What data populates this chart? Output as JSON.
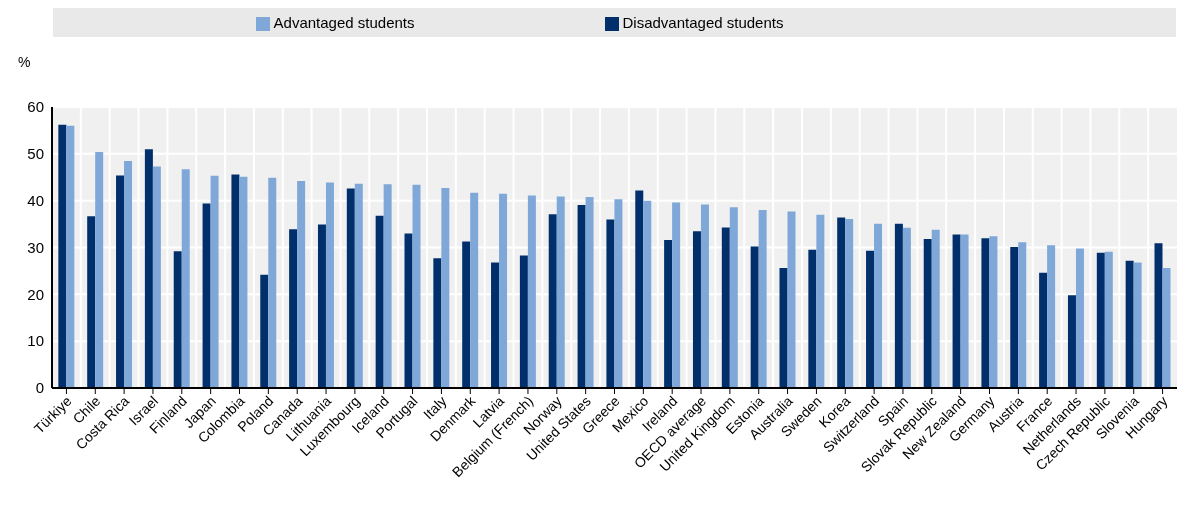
{
  "chart_data": {
    "type": "bar",
    "ylabel": "%",
    "categories": [
      "Türkiye",
      "Chile",
      "Costa Rica",
      "Israel",
      "Finland",
      "Japan",
      "Colombia",
      "Poland",
      "Canada",
      "Lithuania",
      "Luxembourg",
      "Iceland",
      "Portugal",
      "Italy",
      "Denmark",
      "Latvia",
      "Belgium (French)",
      "Norway",
      "United States",
      "Greece",
      "Mexico",
      "Ireland",
      "OECD average",
      "United Kingdom",
      "Estonia",
      "Australia",
      "Sweden",
      "Korea",
      "Switzerland",
      "Spain",
      "Slovak Republic",
      "New Zealand",
      "Germany",
      "Austria",
      "France",
      "Netherlands",
      "Czech Republic",
      "Slovenia",
      "Hungary"
    ],
    "series": [
      {
        "name": "Disadvantaged students",
        "color": "#002f6c",
        "values": [
          56.2,
          36.7,
          45.4,
          51.0,
          29.2,
          39.4,
          45.6,
          24.2,
          33.9,
          34.9,
          42.6,
          36.8,
          33.0,
          27.7,
          31.3,
          26.8,
          28.3,
          37.1,
          39.1,
          36.0,
          42.2,
          31.6,
          33.5,
          34.3,
          30.2,
          25.6,
          29.5,
          36.4,
          29.3,
          35.1,
          31.8,
          32.8,
          32.0,
          30.1,
          24.6,
          19.8,
          28.9,
          27.2,
          30.9
        ]
      },
      {
        "name": "Advantaged students",
        "color": "#7fa8d9",
        "values": [
          56.0,
          50.4,
          48.5,
          47.3,
          46.7,
          45.3,
          45.1,
          44.9,
          44.2,
          43.9,
          43.6,
          43.5,
          43.4,
          42.7,
          41.7,
          41.5,
          41.1,
          40.9,
          40.8,
          40.3,
          40.0,
          39.6,
          39.2,
          38.6,
          38.0,
          37.7,
          37.0,
          36.1,
          35.1,
          34.2,
          33.8,
          32.8,
          32.4,
          31.1,
          30.5,
          29.8,
          29.1,
          26.8,
          25.6
        ]
      }
    ],
    "ylim": [
      0,
      60
    ],
    "yticks": [
      0,
      10,
      20,
      30,
      40,
      50,
      60
    ],
    "grid": true,
    "legend": "top"
  }
}
